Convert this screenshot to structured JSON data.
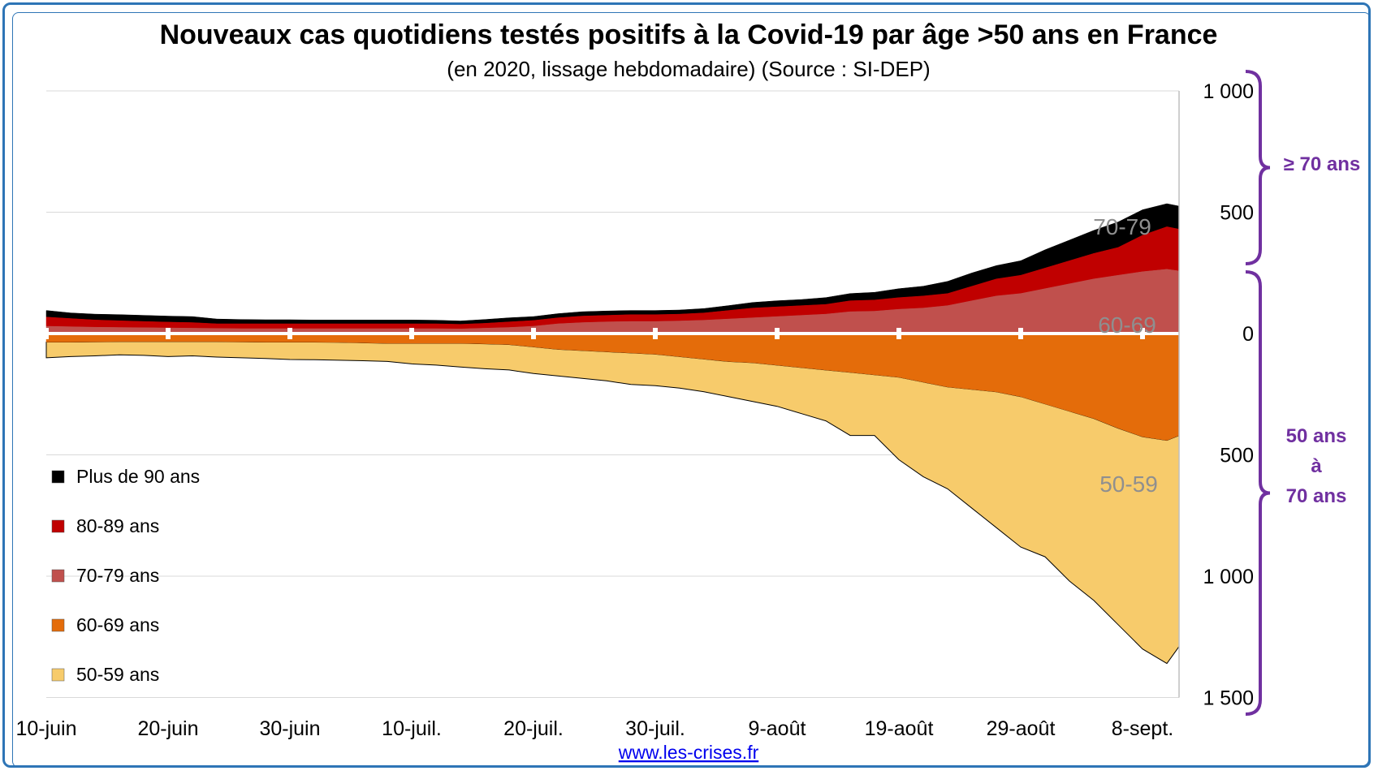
{
  "chart_data": {
    "type": "area",
    "title": "Nouveaux cas quotidiens testés positifs à la Covid-19 par âge >50 ans en France",
    "subtitle": "(en 2020, lissage hebdomadaire) (Source : SI-DEP)",
    "x_tick_labels": [
      "10-juin",
      "20-juin",
      "30-juin",
      "10-juil.",
      "20-juil.",
      "30-juil.",
      "9-août",
      "19-août",
      "29-août",
      "8-sept."
    ],
    "x_tick_days": [
      0,
      10,
      20,
      30,
      40,
      50,
      60,
      70,
      80,
      90
    ],
    "y_upper_ticks": [
      {
        "label": "1 000",
        "value": 1000
      },
      {
        "label": "500",
        "value": 500
      },
      {
        "label": "0",
        "value": 0
      }
    ],
    "y_lower_ticks": [
      {
        "label": "500",
        "value": 500
      },
      {
        "label": "1 000",
        "value": 1000
      },
      {
        "label": "1 500",
        "value": 1500
      }
    ],
    "ylim_upper": [
      0,
      1000
    ],
    "ylim_lower": [
      0,
      1500
    ],
    "x_days": [
      0,
      2,
      4,
      6,
      8,
      10,
      12,
      14,
      16,
      18,
      20,
      22,
      24,
      26,
      28,
      30,
      32,
      34,
      36,
      38,
      40,
      42,
      44,
      46,
      48,
      50,
      52,
      54,
      56,
      58,
      60,
      62,
      64,
      66,
      68,
      70,
      72,
      74,
      76,
      78,
      80,
      82,
      84,
      86,
      88,
      90,
      92,
      93
    ],
    "series_above_cumulative": [
      {
        "name": "70-79 ans",
        "color": "#c0504d",
        "values": [
          30,
          28,
          26,
          25,
          24,
          23,
          22,
          21,
          20,
          20,
          20,
          20,
          20,
          20,
          20,
          20,
          20,
          19,
          22,
          25,
          30,
          40,
          45,
          48,
          50,
          50,
          52,
          55,
          60,
          65,
          70,
          75,
          80,
          90,
          92,
          100,
          105,
          115,
          135,
          155,
          165,
          185,
          205,
          225,
          240,
          255,
          265,
          258
        ]
      },
      {
        "name": "80-89 ans",
        "color": "#c00000",
        "values": [
          68,
          62,
          56,
          53,
          50,
          47,
          45,
          40,
          40,
          40,
          40,
          40,
          40,
          40,
          40,
          40,
          40,
          38,
          42,
          48,
          54,
          65,
          72,
          75,
          78,
          78,
          80,
          85,
          95,
          105,
          110,
          115,
          120,
          135,
          138,
          148,
          155,
          165,
          195,
          225,
          240,
          270,
          300,
          330,
          355,
          405,
          440,
          430
        ]
      },
      {
        "name": "Plus de 90 ans",
        "color": "#000000",
        "values": [
          95,
          85,
          80,
          78,
          75,
          72,
          70,
          60,
          58,
          57,
          57,
          56,
          56,
          56,
          56,
          56,
          55,
          52,
          58,
          65,
          70,
          82,
          90,
          93,
          95,
          95,
          97,
          103,
          115,
          128,
          135,
          140,
          148,
          165,
          170,
          185,
          195,
          215,
          250,
          280,
          300,
          345,
          385,
          425,
          460,
          510,
          535,
          525
        ]
      }
    ],
    "series_below_cumulative": [
      {
        "name": "60-69 ans",
        "color": "#e46c0a",
        "values": [
          35,
          35,
          34,
          33,
          33,
          33,
          33,
          33,
          34,
          35,
          35,
          35,
          36,
          38,
          40,
          40,
          40,
          40,
          42,
          45,
          55,
          65,
          70,
          75,
          80,
          85,
          95,
          105,
          115,
          120,
          130,
          140,
          150,
          160,
          170,
          180,
          200,
          220,
          230,
          240,
          260,
          290,
          320,
          350,
          390,
          425,
          440,
          420
        ]
      },
      {
        "name": "50-59 ans",
        "color": "#f7cb6b",
        "values": [
          100,
          95,
          92,
          88,
          90,
          95,
          92,
          97,
          100,
          103,
          107,
          108,
          110,
          112,
          115,
          125,
          130,
          138,
          145,
          150,
          165,
          175,
          185,
          195,
          210,
          215,
          225,
          240,
          260,
          280,
          300,
          330,
          360,
          420,
          420,
          520,
          590,
          640,
          720,
          800,
          880,
          920,
          1020,
          1100,
          1200,
          1300,
          1360,
          1290
        ]
      }
    ],
    "legend": [
      {
        "label": "Plus de 90 ans",
        "color": "#000000"
      },
      {
        "label": "80-89 ans",
        "color": "#c00000"
      },
      {
        "label": "70-79 ans",
        "color": "#c0504d"
      },
      {
        "label": "60-69 ans",
        "color": "#e46c0a"
      },
      {
        "label": "50-59 ans",
        "color": "#f7cb6b"
      }
    ],
    "annotations": [
      {
        "text": "70-79",
        "near": "top-right of upper area"
      },
      {
        "text": "60-69",
        "near": "just above the zero line, right"
      },
      {
        "text": "50-59",
        "near": "lower area, right"
      }
    ],
    "braces": [
      {
        "label": "≥ 70 ans",
        "side": "right",
        "spans": "upper axis"
      },
      {
        "label_lines": [
          "50 ans",
          "à",
          "70 ans"
        ],
        "side": "right",
        "spans": "lower axis"
      }
    ],
    "grid": true,
    "legend_position": "left"
  },
  "footer": {
    "link_text": "www.les-crises.fr"
  },
  "colors": {
    "frame": "#2e75b6",
    "brace": "#7030a0",
    "annotation": "#8f8f8f",
    "zero_line": "#ffffff"
  }
}
